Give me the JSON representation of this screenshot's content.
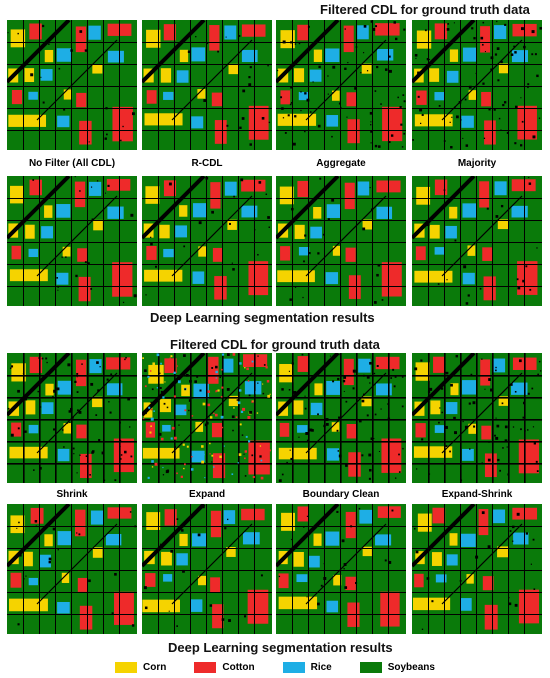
{
  "headings": {
    "top_filtered": "Filtered CDL for ground truth data",
    "mid_deep": "Deep Learning segmentation results",
    "mid_filtered": "Filtered CDL for ground truth data",
    "bottom_deep": "Deep Learning segmentation results"
  },
  "group1_labels": [
    "No Filter (All CDL)",
    "R-CDL",
    "Aggregate",
    "Majority"
  ],
  "group2_labels": [
    "Shrink",
    "Expand",
    "Boundary Clean",
    "Expand-Shrink"
  ],
  "legend": [
    {
      "label": "Corn",
      "color": "#f5d300"
    },
    {
      "label": "Cotton",
      "color": "#ee2a2a"
    },
    {
      "label": "Rice",
      "color": "#1eaee5"
    },
    {
      "label": "Soybeans",
      "color": "#0a7a0a"
    }
  ],
  "colors": {
    "background_soy": "#0a7a0a",
    "corn": "#f5d300",
    "cotton": "#ee2a2a",
    "rice": "#1eaee5",
    "black": "#000000"
  }
}
